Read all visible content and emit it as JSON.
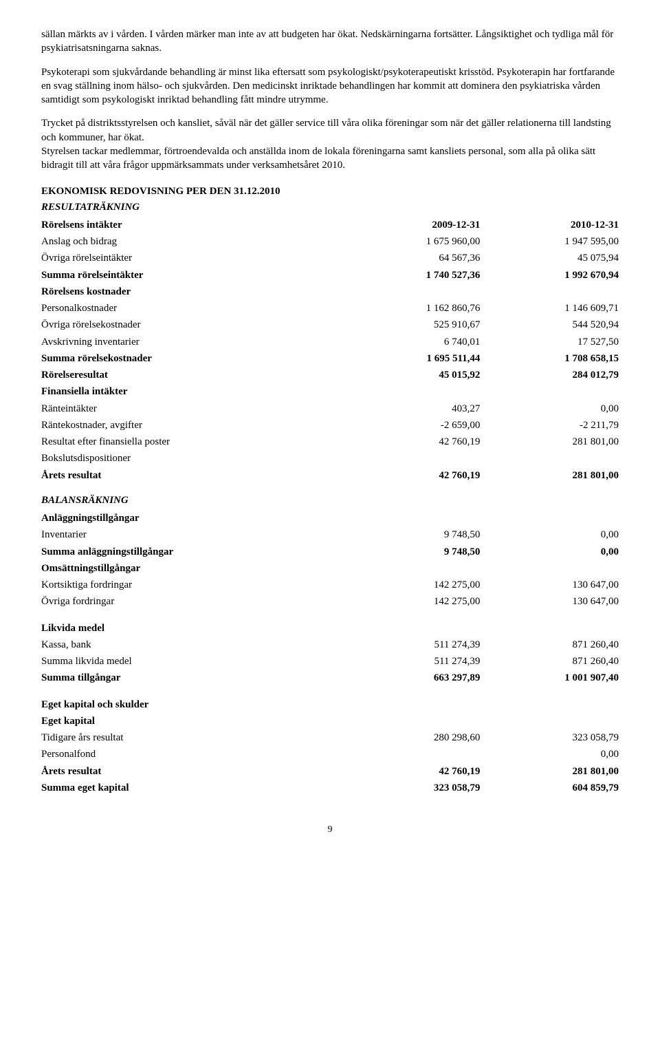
{
  "paragraphs": {
    "p1": "sällan märkts av i vården. I vården märker man inte av att budgeten har ökat. Nedskärningarna fortsätter. Långsiktighet och tydliga mål för psykiatrisatsningarna saknas.",
    "p2": "Psykoterapi som sjukvårdande behandling är minst lika eftersatt som psykologiskt/psykoterapeutiskt krisstöd. Psykoterapin har fortfarande en svag ställning inom hälso- och sjukvården. Den medicinskt inriktade behandlingen har kommit att dominera den psykiatriska vården samtidigt som psykologiskt inriktad behandling fått mindre utrymme.",
    "p3a": "Trycket på distriktsstyrelsen och kansliet, såväl när det gäller service till våra olika föreningar som när det gäller relationerna till landsting och kommuner, har ökat.",
    "p3b": "Styrelsen tackar medlemmar, förtroendevalda och anställda inom de lokala föreningarna samt kansliets personal, som alla på olika sätt bidragit till att våra frågor uppmärksammats under verksamhetsåret 2010."
  },
  "sectionTitle": "EKONOMISK REDOVISNING PER DEN 31.12.2010",
  "resultHeading": "RESULTATRÄKNING",
  "balanceHeading": "BALANSRÄKNING",
  "resultRows": [
    {
      "label": "Rörelsens intäkter",
      "c1": "2009-12-31",
      "c2": "2010-12-31",
      "bold": true
    },
    {
      "label": "Anslag och bidrag",
      "c1": "1 675 960,00",
      "c2": "1 947 595,00"
    },
    {
      "label": "Övriga rörelseintäkter",
      "c1": "64 567,36",
      "c2": "45 075,94"
    },
    {
      "label": "Summa rörelseintäkter",
      "c1": "1 740 527,36",
      "c2": "1 992 670,94",
      "bold": true
    },
    {
      "label": "Rörelsens kostnader",
      "c1": "",
      "c2": "",
      "bold": true
    },
    {
      "label": "Personalkostnader",
      "c1": "1 162 860,76",
      "c2": "1 146 609,71"
    },
    {
      "label": "Övriga rörelsekostnader",
      "c1": "525 910,67",
      "c2": "544 520,94"
    },
    {
      "label": "Avskrivning inventarier",
      "c1": "6 740,01",
      "c2": "17 527,50"
    },
    {
      "label": "Summa rörelsekostnader",
      "c1": "1 695 511,44",
      "c2": "1 708 658,15",
      "bold": true
    },
    {
      "label": "Rörelseresultat",
      "c1": "45 015,92",
      "c2": "284 012,79",
      "bold": true
    },
    {
      "label": "Finansiella intäkter",
      "c1": "",
      "c2": "",
      "bold": true
    },
    {
      "label": "Ränteintäkter",
      "c1": "403,27",
      "c2": "0,00"
    },
    {
      "label": "Räntekostnader, avgifter",
      "c1": "-2 659,00",
      "c2": "-2 211,79"
    },
    {
      "label": "Resultat efter finansiella poster",
      "c1": "42 760,19",
      "c2": "281 801,00"
    },
    {
      "label": "Bokslutsdispositioner",
      "c1": "",
      "c2": ""
    },
    {
      "label": "Årets resultat",
      "c1": "42 760,19",
      "c2": "281 801,00",
      "bold": true
    }
  ],
  "balanceRows": [
    {
      "label": "Anläggningstillgångar",
      "c1": "",
      "c2": "",
      "bold": true
    },
    {
      "label": "Inventarier",
      "c1": "9 748,50",
      "c2": "0,00"
    },
    {
      "label": "Summa anläggningstillgångar",
      "c1": "9 748,50",
      "c2": "0,00",
      "bold": true
    },
    {
      "label": "Omsättningstillgångar",
      "c1": "",
      "c2": "",
      "bold": true
    },
    {
      "label": "Kortsiktiga fordringar",
      "c1": "142 275,00",
      "c2": "130 647,00"
    },
    {
      "label": "Övriga fordringar",
      "c1": "142 275,00",
      "c2": "130 647,00"
    },
    {
      "spacer": true
    },
    {
      "label": "Likvida medel",
      "c1": "",
      "c2": "",
      "bold": true
    },
    {
      "label": "Kassa, bank",
      "c1": "511 274,39",
      "c2": "871 260,40"
    },
    {
      "label": "Summa likvida medel",
      "c1": "511 274,39",
      "c2": "871 260,40"
    },
    {
      "label": "Summa tillgångar",
      "c1": "663 297,89",
      "c2": "1 001 907,40",
      "bold": true
    },
    {
      "spacer": true
    },
    {
      "label": "Eget kapital och skulder",
      "c1": "",
      "c2": "",
      "bold": true
    },
    {
      "label": "Eget kapital",
      "c1": "",
      "c2": "",
      "bold": true
    },
    {
      "label": "Tidigare års resultat",
      "c1": "280 298,60",
      "c2": "323 058,79"
    },
    {
      "label": "Personalfond",
      "c1": "",
      "c2": "0,00"
    },
    {
      "label": "Årets resultat",
      "c1": "42 760,19",
      "c2": "281 801,00",
      "bold": true
    },
    {
      "label": "Summa eget kapital",
      "c1": "323 058,79",
      "c2": "604 859,79",
      "bold": true
    }
  ],
  "pageNumber": "9"
}
